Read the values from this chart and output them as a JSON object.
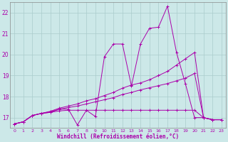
{
  "xlabel": "Windchill (Refroidissement éolien,°C)",
  "bg_color": "#cce8e8",
  "grid_color": "#aacccc",
  "line_color": "#aa00aa",
  "xlim": [
    -0.5,
    23.5
  ],
  "ylim": [
    16.5,
    22.5
  ],
  "xticks": [
    0,
    1,
    2,
    3,
    4,
    5,
    6,
    7,
    8,
    9,
    10,
    11,
    12,
    13,
    14,
    15,
    16,
    17,
    18,
    19,
    20,
    21,
    22,
    23
  ],
  "yticks": [
    17,
    18,
    19,
    20,
    21,
    22
  ],
  "series": [
    {
      "x": [
        0,
        1,
        2,
        3,
        4,
        5,
        6,
        7,
        8,
        9,
        10,
        11,
        12,
        13,
        14,
        15,
        16,
        17,
        18,
        19,
        20,
        21,
        22,
        23
      ],
      "y": [
        16.7,
        16.8,
        17.1,
        17.2,
        17.25,
        17.4,
        17.4,
        16.65,
        17.35,
        17.05,
        19.9,
        20.5,
        20.5,
        18.5,
        20.5,
        21.25,
        21.3,
        22.3,
        20.1,
        18.6,
        17.0,
        17.0,
        16.9,
        16.9
      ]
    },
    {
      "x": [
        0,
        1,
        2,
        3,
        4,
        5,
        6,
        7,
        8,
        9,
        10,
        11,
        12,
        13,
        14,
        15,
        16,
        17,
        18,
        19,
        20,
        21,
        22,
        23
      ],
      "y": [
        16.7,
        16.8,
        17.1,
        17.2,
        17.3,
        17.45,
        17.55,
        17.65,
        17.8,
        17.9,
        18.05,
        18.2,
        18.4,
        18.55,
        18.65,
        18.8,
        19.0,
        19.2,
        19.5,
        19.8,
        20.1,
        17.0,
        16.9,
        16.9
      ]
    },
    {
      "x": [
        0,
        1,
        2,
        3,
        4,
        5,
        6,
        7,
        8,
        9,
        10,
        11,
        12,
        13,
        14,
        15,
        16,
        17,
        18,
        19,
        20,
        21,
        22,
        23
      ],
      "y": [
        16.7,
        16.8,
        17.1,
        17.2,
        17.28,
        17.4,
        17.48,
        17.55,
        17.65,
        17.75,
        17.85,
        17.95,
        18.1,
        18.2,
        18.32,
        18.42,
        18.52,
        18.62,
        18.75,
        18.88,
        19.1,
        17.0,
        16.9,
        16.9
      ]
    },
    {
      "x": [
        0,
        1,
        2,
        3,
        4,
        5,
        6,
        7,
        8,
        9,
        10,
        11,
        12,
        13,
        14,
        15,
        16,
        17,
        18,
        19,
        20,
        21,
        22,
        23
      ],
      "y": [
        16.7,
        16.8,
        17.1,
        17.2,
        17.25,
        17.32,
        17.35,
        17.35,
        17.35,
        17.35,
        17.35,
        17.35,
        17.35,
        17.35,
        17.35,
        17.35,
        17.35,
        17.35,
        17.35,
        17.35,
        17.35,
        17.0,
        16.9,
        16.9
      ]
    }
  ]
}
